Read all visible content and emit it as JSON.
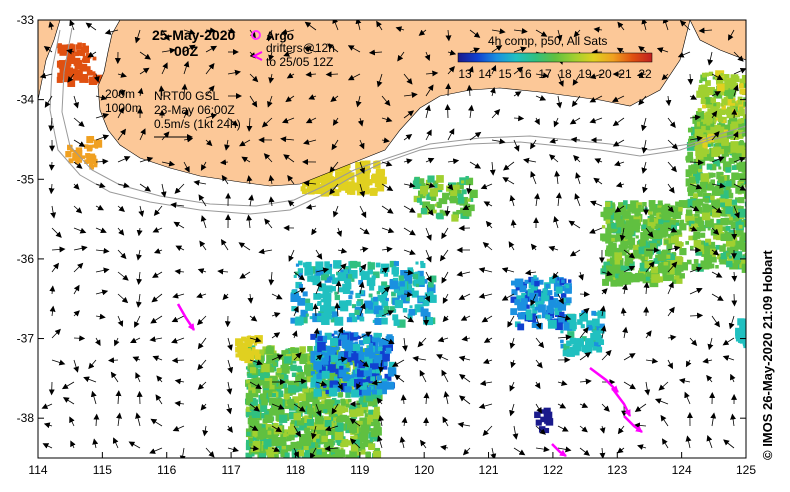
{
  "title": {
    "date": "25-May-2020",
    "hour": "00Z"
  },
  "legend": {
    "argo_label": "Argo",
    "drifters_line1": "drifters@12h",
    "drifters_line2": "to 25/05 12Z",
    "colorbar_title": "4h comp, p50, All Sats",
    "colorbar_ticks": [
      "13",
      "14",
      "15",
      "16",
      "17",
      "18",
      "19",
      "20",
      "21",
      "22"
    ],
    "argo_color": "#ff33ff",
    "drifter_color": "#ff00ff"
  },
  "annotations": {
    "depth_200": "200m",
    "depth_1000": "1000m",
    "nrt_line1": "NRT00 GSL",
    "nrt_line2": "23-May 06:00Z",
    "nrt_line3": "0.5m/s (1kt 24h)"
  },
  "axes": {
    "x_ticks": [
      "114",
      "115",
      "116",
      "117",
      "118",
      "119",
      "120",
      "121",
      "122",
      "123",
      "124",
      "125"
    ],
    "y_ticks": [
      "-33",
      "-34",
      "-35",
      "-36",
      "-37",
      "-38"
    ],
    "lon_range": [
      114,
      125
    ],
    "lat_range": [
      -38.5,
      -33
    ]
  },
  "colors": {
    "land": "#fcc898",
    "sea": "#ffffff",
    "colormap": [
      "#1a1a8c",
      "#1040d0",
      "#1a90e0",
      "#20c0c0",
      "#30c080",
      "#60c040",
      "#a0d030",
      "#e0d020",
      "#f0a020",
      "#e05010",
      "#c02020"
    ]
  },
  "credit": "© IMOS 26-May-2020 21:09 Hobart"
}
